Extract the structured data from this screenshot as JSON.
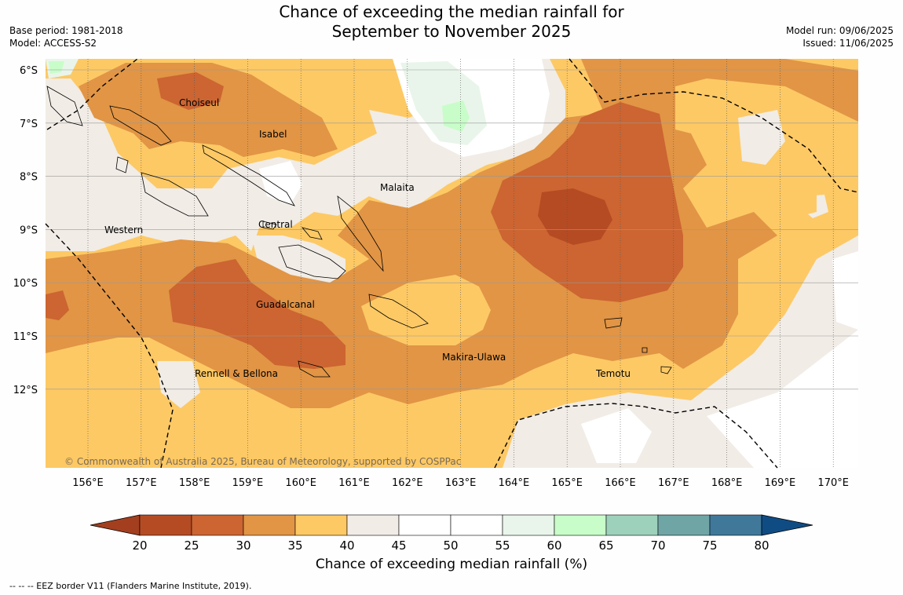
{
  "header": {
    "title_line1": "Chance of exceeding the median rainfall for",
    "title_line2": "September to November 2025",
    "base_period": "Base period: 1981-2018",
    "model": "Model: ACCESS-S2",
    "model_run": "Model run: 09/06/2025",
    "issued": "Issued: 11/06/2025"
  },
  "map": {
    "lon_ticks": [
      "156°E",
      "157°E",
      "158°E",
      "159°E",
      "160°E",
      "161°E",
      "162°E",
      "163°E",
      "164°E",
      "165°E",
      "166°E",
      "167°E",
      "168°E",
      "169°E",
      "170°E"
    ],
    "lat_ticks": [
      "6°S",
      "7°S",
      "8°S",
      "9°S",
      "10°S",
      "11°S",
      "12°S"
    ],
    "region_labels": [
      "Choiseul",
      "Isabel",
      "Malaita",
      "Western",
      "Central",
      "Guadalcanal",
      "Makira-Ulawa",
      "Rennell & Bellona",
      "Temotu"
    ],
    "copyright": "© Commonwealth of Australia 2025, Bureau of Meteorology, supported by COSPPac"
  },
  "colorbar": {
    "ticks": [
      "20",
      "25",
      "30",
      "35",
      "40",
      "45",
      "50",
      "55",
      "60",
      "65",
      "70",
      "75",
      "80"
    ],
    "colors": [
      "#a33f1f",
      "#b54b23",
      "#cc6531",
      "#e19545",
      "#fdc965",
      "#f1ece6",
      "#ffffff",
      "#ffffff",
      "#e9f5ea",
      "#c8fdc9",
      "#9ed1bb",
      "#6fa5a5",
      "#40789a",
      "#104c84"
    ],
    "label": "Chance of exceeding median rainfall (%)"
  },
  "footer": {
    "eez_note": "--  --  -- EEZ border V11 (Flanders Marine Institute, 2019)."
  }
}
